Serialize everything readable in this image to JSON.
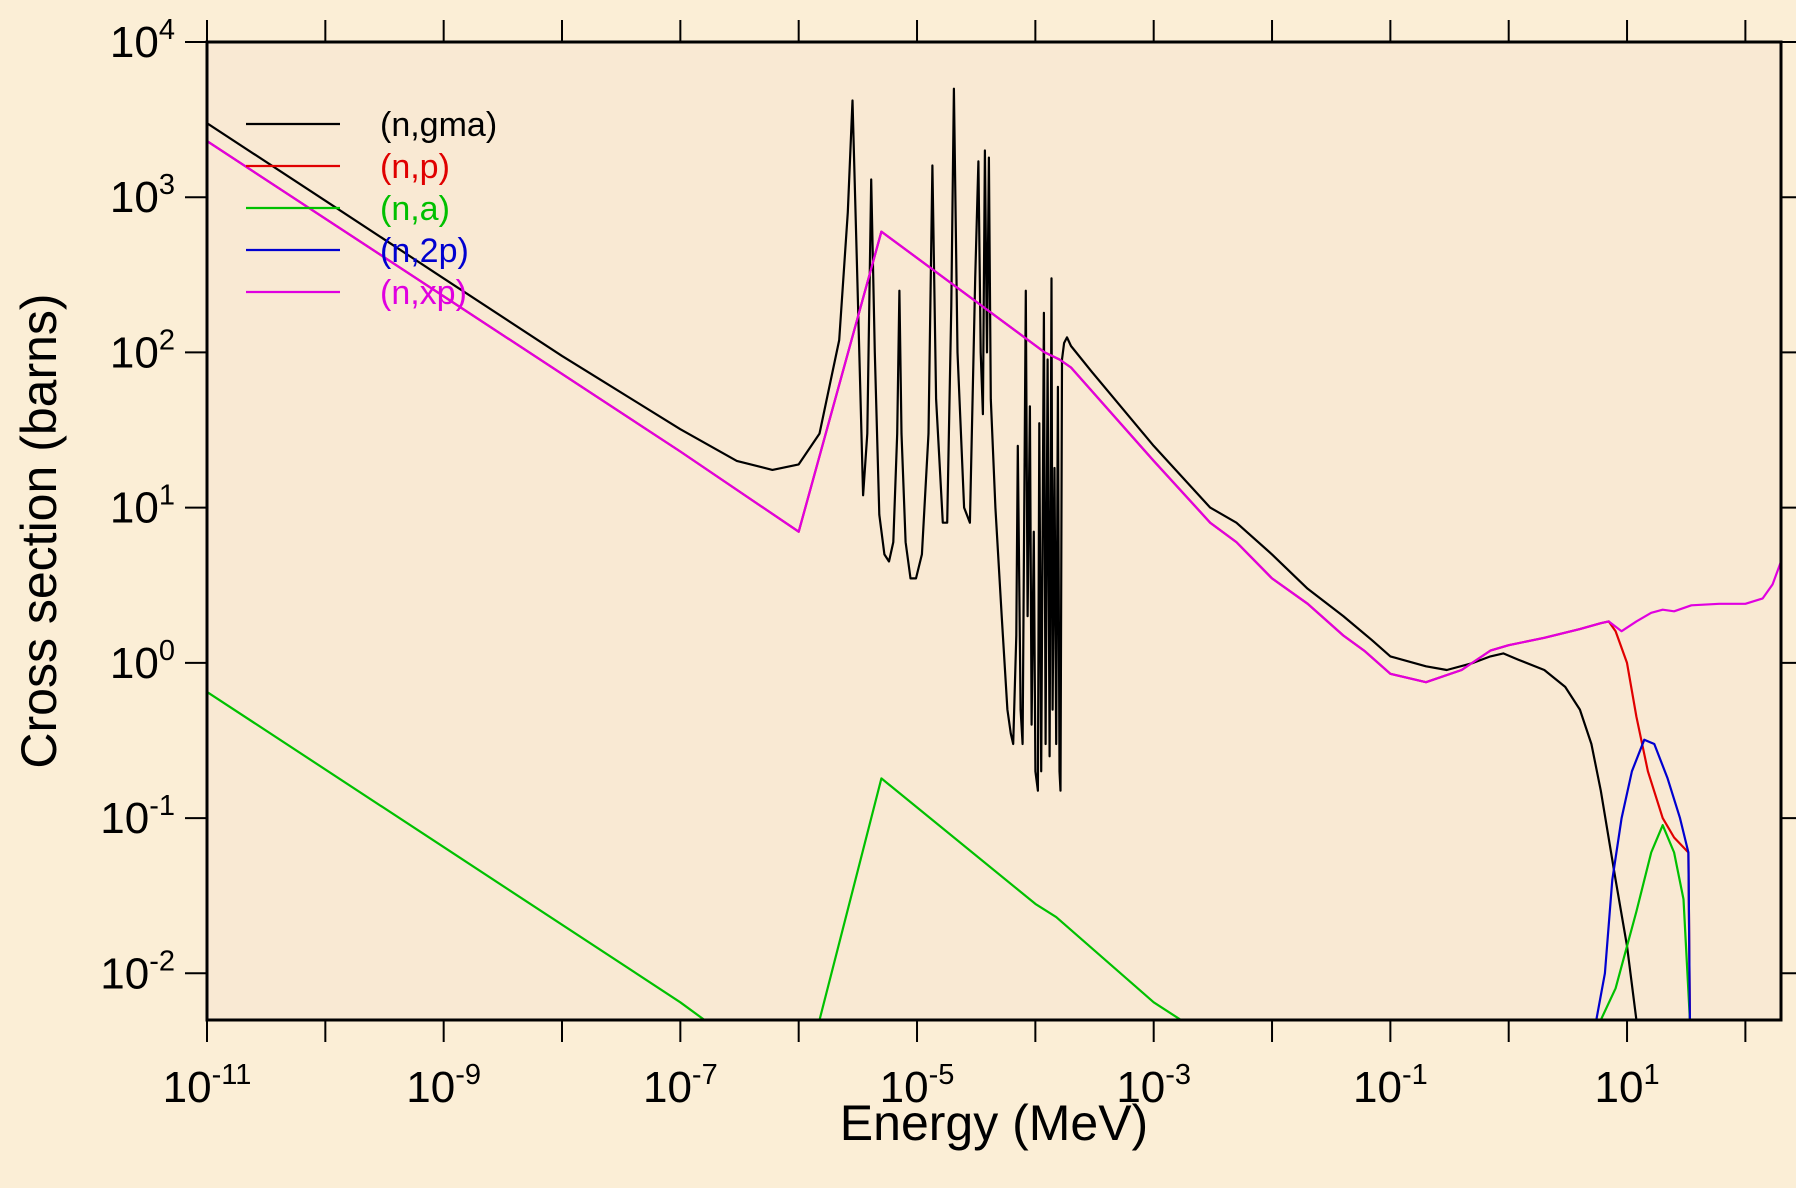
{
  "chart_data": {
    "type": "line",
    "title": "",
    "xlabel": "Energy (MeV)",
    "ylabel": "Cross section (barns)",
    "xscale": "log",
    "yscale": "log",
    "xlim": [
      1e-11,
      200
    ],
    "ylim": [
      0.005,
      10000
    ],
    "grid": false,
    "legend_position": "top-left",
    "background": "#fbeed6",
    "plot_background": "#f9e9d3",
    "x_ticks": [
      {
        "base": "10",
        "exp": "-11",
        "value": 1e-11
      },
      {
        "base": "10",
        "exp": "-9",
        "value": 1e-09
      },
      {
        "base": "10",
        "exp": "-7",
        "value": 1e-07
      },
      {
        "base": "10",
        "exp": "-5",
        "value": 1e-05
      },
      {
        "base": "10",
        "exp": "-3",
        "value": 0.001
      },
      {
        "base": "10",
        "exp": "-1",
        "value": 0.1
      },
      {
        "base": "10",
        "exp": "1",
        "value": 10
      }
    ],
    "y_ticks": [
      {
        "base": "10",
        "exp": "4",
        "value": 10000
      },
      {
        "base": "10",
        "exp": "3",
        "value": 1000
      },
      {
        "base": "10",
        "exp": "2",
        "value": 100
      },
      {
        "base": "10",
        "exp": "1",
        "value": 10
      },
      {
        "base": "10",
        "exp": "0",
        "value": 1
      },
      {
        "base": "10",
        "exp": "-1",
        "value": 0.1
      },
      {
        "base": "10",
        "exp": "-2",
        "value": 0.01
      }
    ],
    "series": [
      {
        "name": "(n,gma)",
        "color": "#000000",
        "points": [
          [
            1e-11,
            3000
          ],
          [
            1e-10,
            950
          ],
          [
            1e-09,
            300
          ],
          [
            1e-08,
            95
          ],
          [
            1e-07,
            32
          ],
          [
            3e-07,
            20
          ],
          [
            6e-07,
            17.5
          ],
          [
            1e-06,
            19
          ],
          [
            1.5e-06,
            30
          ],
          [
            2.2e-06,
            120
          ],
          [
            2.6e-06,
            800
          ],
          [
            2.85e-06,
            4200
          ],
          [
            3.1e-06,
            400
          ],
          [
            3.5e-06,
            12
          ],
          [
            3.8e-06,
            30
          ],
          [
            4.1e-06,
            1300
          ],
          [
            4.4e-06,
            100
          ],
          [
            4.8e-06,
            9
          ],
          [
            5.3e-06,
            5
          ],
          [
            5.8e-06,
            4.5
          ],
          [
            6.3e-06,
            6
          ],
          [
            6.8e-06,
            30
          ],
          [
            7.1e-06,
            250
          ],
          [
            7.4e-06,
            30
          ],
          [
            8e-06,
            6
          ],
          [
            8.8e-06,
            3.5
          ],
          [
            9.8e-06,
            3.5
          ],
          [
            1.1e-05,
            5
          ],
          [
            1.25e-05,
            30
          ],
          [
            1.35e-05,
            1600
          ],
          [
            1.45e-05,
            50
          ],
          [
            1.65e-05,
            8
          ],
          [
            1.8e-05,
            8
          ],
          [
            1.95e-05,
            200
          ],
          [
            2.05e-05,
            5000
          ],
          [
            2.2e-05,
            100
          ],
          [
            2.5e-05,
            10
          ],
          [
            2.8e-05,
            8
          ],
          [
            3.1e-05,
            300
          ],
          [
            3.3e-05,
            1700
          ],
          [
            3.45e-05,
            100
          ],
          [
            3.6e-05,
            40
          ],
          [
            3.75e-05,
            2000
          ],
          [
            3.9e-05,
            100
          ],
          [
            4.05e-05,
            1800
          ],
          [
            4.2e-05,
            50
          ],
          [
            4.6e-05,
            10
          ],
          [
            5.2e-05,
            2
          ],
          [
            5.8e-05,
            0.5
          ],
          [
            6.2e-05,
            0.35
          ],
          [
            6.5e-05,
            0.3
          ],
          [
            6.9e-05,
            1.5
          ],
          [
            7.1e-05,
            25
          ],
          [
            7.5e-05,
            0.5
          ],
          [
            7.8e-05,
            0.3
          ],
          [
            8.3e-05,
            250
          ],
          [
            8.6e-05,
            2
          ],
          [
            9e-05,
            45
          ],
          [
            9.3e-05,
            0.4
          ],
          [
            9.7e-05,
            7
          ],
          [
            0.0001,
            0.2
          ],
          [
            0.000105,
            0.15
          ],
          [
            0.000108,
            35
          ],
          [
            0.000112,
            0.2
          ],
          [
            0.000118,
            180
          ],
          [
            0.000122,
            0.3
          ],
          [
            0.000127,
            90
          ],
          [
            0.000132,
            0.25
          ],
          [
            0.000137,
            300
          ],
          [
            0.00014,
            0.5
          ],
          [
            0.000145,
            18
          ],
          [
            0.00015,
            0.3
          ],
          [
            0.000155,
            60
          ],
          [
            0.00016,
            0.2
          ],
          [
            0.000163,
            0.15
          ],
          [
            0.000168,
            90
          ],
          [
            0.000175,
            115
          ],
          [
            0.000185,
            125
          ],
          [
            0.0002,
            110
          ],
          [
            0.0003,
            75
          ],
          [
            0.001,
            25
          ],
          [
            0.003,
            10
          ],
          [
            0.005,
            8
          ],
          [
            0.01,
            5
          ],
          [
            0.02,
            3
          ],
          [
            0.04,
            2
          ],
          [
            0.07,
            1.4
          ],
          [
            0.1,
            1.1
          ],
          [
            0.2,
            0.95
          ],
          [
            0.3,
            0.9
          ],
          [
            0.5,
            1
          ],
          [
            0.7,
            1.1
          ],
          [
            0.9,
            1.15
          ],
          [
            1.2,
            1.05
          ],
          [
            2,
            0.9
          ],
          [
            3,
            0.7
          ],
          [
            4,
            0.5
          ],
          [
            5,
            0.3
          ],
          [
            6,
            0.15
          ],
          [
            8,
            0.04
          ],
          [
            10,
            0.015
          ],
          [
            12,
            0.005
          ]
        ]
      },
      {
        "name": "(n,p)",
        "color": "#e00000",
        "points": [
          [
            1e-11,
            2300
          ],
          [
            1e-09,
            230
          ],
          [
            1e-07,
            23
          ],
          [
            1e-06,
            7
          ],
          [
            5e-06,
            600
          ],
          [
            0.00012,
            100
          ],
          [
            0.00016,
            90
          ],
          [
            0.0002,
            80
          ],
          [
            0.001,
            20
          ],
          [
            0.003,
            8
          ],
          [
            0.005,
            6
          ],
          [
            0.01,
            3.5
          ],
          [
            0.02,
            2.4
          ],
          [
            0.04,
            1.5
          ],
          [
            0.06,
            1.2
          ],
          [
            0.1,
            0.85
          ],
          [
            0.2,
            0.75
          ],
          [
            0.4,
            0.9
          ],
          [
            0.7,
            1.2
          ],
          [
            1,
            1.3
          ],
          [
            2,
            1.45
          ],
          [
            4,
            1.65
          ],
          [
            6,
            1.8
          ],
          [
            7,
            1.85
          ],
          [
            8,
            1.6
          ],
          [
            10,
            1.0
          ],
          [
            12,
            0.45
          ],
          [
            15,
            0.2
          ],
          [
            20,
            0.1
          ],
          [
            25,
            0.075
          ],
          [
            33,
            0.06
          ],
          [
            34,
            0.005
          ]
        ]
      },
      {
        "name": "(n,a)",
        "color": "#00c000",
        "points": [
          [
            1e-11,
            0.65
          ],
          [
            1e-09,
            0.065
          ],
          [
            1e-07,
            0.0065
          ],
          [
            1.6e-07,
            0.005
          ],
          [
            1.5e-06,
            0.005
          ],
          [
            5e-06,
            0.18
          ],
          [
            0.0001,
            0.028
          ],
          [
            0.00015,
            0.023
          ],
          [
            0.001,
            0.0065
          ],
          [
            0.0017,
            0.005
          ],
          [
            6,
            0.005
          ],
          [
            8,
            0.008
          ],
          [
            12,
            0.025
          ],
          [
            16,
            0.06
          ],
          [
            20,
            0.09
          ],
          [
            25,
            0.06
          ],
          [
            30,
            0.03
          ],
          [
            34,
            0.005
          ]
        ]
      },
      {
        "name": "(n,2p)",
        "color": "#0000d0",
        "points": [
          [
            1e-11,
            0.005
          ],
          [
            5.5,
            0.005
          ],
          [
            6.5,
            0.01
          ],
          [
            7.5,
            0.04
          ],
          [
            9,
            0.1
          ],
          [
            11,
            0.2
          ],
          [
            14,
            0.32
          ],
          [
            17,
            0.3
          ],
          [
            22,
            0.18
          ],
          [
            28,
            0.1
          ],
          [
            33,
            0.06
          ],
          [
            34,
            0.005
          ],
          [
            200,
            0.005
          ]
        ]
      },
      {
        "name": "(n,xp)",
        "color": "#e000e0",
        "points": [
          [
            1e-11,
            2300
          ],
          [
            1e-09,
            230
          ],
          [
            1e-07,
            23
          ],
          [
            1e-06,
            7
          ],
          [
            5e-06,
            600
          ],
          [
            0.00012,
            100
          ],
          [
            0.00016,
            90
          ],
          [
            0.0002,
            80
          ],
          [
            0.001,
            20
          ],
          [
            0.003,
            8
          ],
          [
            0.005,
            6
          ],
          [
            0.01,
            3.5
          ],
          [
            0.02,
            2.4
          ],
          [
            0.04,
            1.5
          ],
          [
            0.06,
            1.2
          ],
          [
            0.1,
            0.85
          ],
          [
            0.2,
            0.75
          ],
          [
            0.4,
            0.9
          ],
          [
            0.7,
            1.2
          ],
          [
            1,
            1.3
          ],
          [
            2,
            1.45
          ],
          [
            4,
            1.65
          ],
          [
            6,
            1.8
          ],
          [
            7,
            1.85
          ],
          [
            9,
            1.6
          ],
          [
            12,
            1.85
          ],
          [
            16,
            2.1
          ],
          [
            20,
            2.2
          ],
          [
            25,
            2.15
          ],
          [
            35,
            2.35
          ],
          [
            60,
            2.4
          ],
          [
            100,
            2.4
          ],
          [
            140,
            2.6
          ],
          [
            170,
            3.2
          ],
          [
            200,
            4.5
          ]
        ]
      }
    ]
  }
}
